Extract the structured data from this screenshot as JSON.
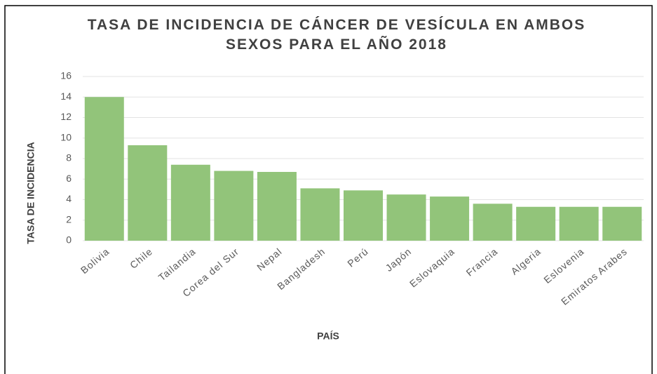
{
  "chart_data": {
    "type": "bar",
    "title": "TASA DE INCIDENCIA DE CÁNCER DE VESÍCULA EN AMBOS SEXOS PARA EL AÑO 2018",
    "xlabel": "PAÍS",
    "ylabel": "TASA DE INCIDENCIA",
    "categories": [
      "Bolivia",
      "Chile",
      "Tailandia",
      "Corea del Sur",
      "Nepal",
      "Bangladesh",
      "Perú",
      "Japón",
      "Eslovaquia",
      "Francia",
      "Algeria",
      "Eslovenia",
      "Emiratos Arabes"
    ],
    "values": [
      14,
      9.3,
      7.4,
      6.8,
      6.7,
      5.1,
      4.9,
      4.5,
      4.3,
      3.6,
      3.3,
      3.3,
      3.3
    ],
    "color": "#92c47a",
    "ylim": [
      0,
      16
    ],
    "yticks": [
      0,
      2,
      4,
      6,
      8,
      10,
      12,
      14,
      16
    ],
    "grid": true
  }
}
